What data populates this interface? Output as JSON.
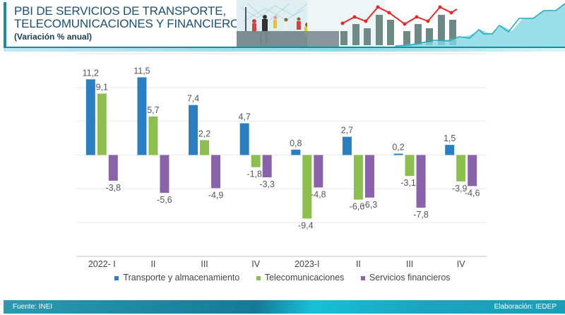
{
  "header": {
    "title_line1": "PBI DE SERVICIOS DE TRANSPORTE,",
    "title_line2": "TELECOMUNICACIONES Y FINANCIERO",
    "subtitle": "(Variación % anual)"
  },
  "colors": {
    "transporte": "#2a7fc0",
    "telecom": "#8cbf4f",
    "financieros": "#8a62aa",
    "accent": "#1b8aa0",
    "title": "#1f4e6e"
  },
  "chart_data": {
    "type": "bar",
    "title": "PBI DE SERVICIOS DE TRANSPORTE, TELECOMUNICACIONES Y FINANCIERO",
    "subtitle": "(Variación % anual)",
    "xlabel": "",
    "ylabel": "",
    "ylim": [
      -15,
      15
    ],
    "grid": true,
    "gridlines": [
      15,
      10,
      5,
      0,
      -5,
      -10,
      -15
    ],
    "legend_position": "bottom",
    "categories": [
      "2022- I",
      "II",
      "III",
      "IV",
      "2023-I",
      "II",
      "III",
      "IV"
    ],
    "series": [
      {
        "name": "Transporte y almacenamiento",
        "key": "transporte",
        "values": [
          11.2,
          11.5,
          7.4,
          4.7,
          0.8,
          2.7,
          0.2,
          1.5
        ],
        "labels": [
          "11,2",
          "11,5",
          "7,4",
          "4,7",
          "0,8",
          "2,7",
          "0,2",
          "1,5"
        ]
      },
      {
        "name": "Telecomunicaciones",
        "key": "telecom",
        "values": [
          9.1,
          5.7,
          2.2,
          -1.8,
          -9.4,
          -6.6,
          -3.1,
          -3.9
        ],
        "labels": [
          "9,1",
          "5,7",
          "2,2",
          "-1,8",
          "-9,4",
          "-6,6",
          "-3,1",
          "-3,9"
        ]
      },
      {
        "name": "Servicios financieros",
        "key": "financieros",
        "values": [
          -3.8,
          -5.6,
          -4.9,
          -3.3,
          -4.8,
          -6.3,
          -7.8,
          -4.6
        ],
        "labels": [
          "-3,8",
          "-5,6",
          "-4,9",
          "-3,3",
          "-4,8",
          "-6,3",
          "-7,8",
          "-4,6"
        ]
      }
    ]
  },
  "legend": [
    {
      "label": "Transporte y almacenamiento",
      "key": "transporte"
    },
    {
      "label": "Telecomunicaciones",
      "key": "telecom"
    },
    {
      "label": "Servicios financieros",
      "key": "financieros"
    }
  ],
  "footer": {
    "source": "Fuente: INEI",
    "credit": "Elaboración: IEDEP"
  }
}
